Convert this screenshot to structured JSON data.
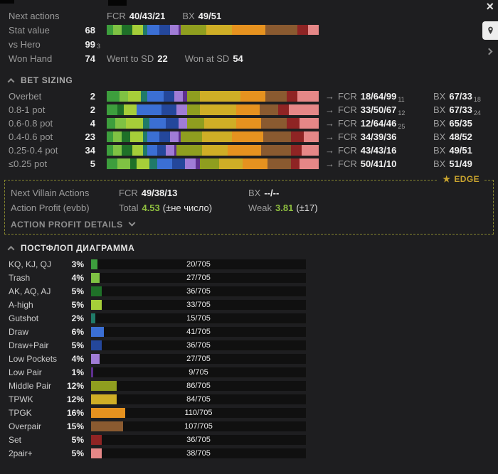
{
  "window": {
    "close_glyph": "×"
  },
  "colors": {
    "background": "#1e1e20",
    "label_gray": "#9b9b9b",
    "value_white": "#efefef",
    "profit_green": "#8fbf3f",
    "edge_gold": "#c9a42e",
    "edge_border": "#85852e",
    "track_bg": "#101010"
  },
  "palette": [
    "#3d9e3d",
    "#7fc243",
    "#1f7028",
    "#a6ce39",
    "#207a68",
    "#3b6fd4",
    "#24479b",
    "#a07cd6",
    "#5e2f8f",
    "#8f9e1f",
    "#cfae26",
    "#e6921f",
    "#8a5a30",
    "#8f2424",
    "#e58787"
  ],
  "header": {
    "next_actions": {
      "label": "Next actions",
      "fcr_label": "FCR",
      "fcr": "40/43/21",
      "bx_label": "BX",
      "bx": "49/51"
    },
    "stat_value": {
      "label": "Stat value",
      "value": "68"
    },
    "vs_hero": {
      "label": "vs Hero",
      "value": "99",
      "sub": "3"
    },
    "won_hand": {
      "label": "Won Hand",
      "value": "74",
      "sd_label": "Went to SD",
      "sd": "22",
      "wsd_label": "Won at SD",
      "wsd": "54"
    },
    "range_bar": [
      [
        0,
        3
      ],
      [
        1,
        4
      ],
      [
        2,
        5
      ],
      [
        3,
        5
      ],
      [
        4,
        2
      ],
      [
        5,
        6
      ],
      [
        6,
        5
      ],
      [
        7,
        4
      ],
      [
        8,
        1
      ],
      [
        9,
        12
      ],
      [
        10,
        12
      ],
      [
        11,
        16
      ],
      [
        12,
        15
      ],
      [
        13,
        5
      ],
      [
        14,
        5
      ]
    ]
  },
  "bet_sizing": {
    "title": "BET SIZING",
    "arrow": "→",
    "fcr_label": "FCR",
    "bx_label": "BX",
    "rows": [
      {
        "label": "Overbet",
        "value": "2",
        "fcr": "18/64/99",
        "fcr_sub": "11",
        "bx": "67/33",
        "bx_sub": "18",
        "segments": [
          [
            0,
            6
          ],
          [
            1,
            4
          ],
          [
            3,
            6
          ],
          [
            4,
            3
          ],
          [
            5,
            8
          ],
          [
            6,
            5
          ],
          [
            7,
            4
          ],
          [
            8,
            2
          ],
          [
            9,
            6
          ],
          [
            10,
            19
          ],
          [
            11,
            12
          ],
          [
            12,
            10
          ],
          [
            13,
            5
          ],
          [
            14,
            10
          ]
        ]
      },
      {
        "label": "0.8-1 pot",
        "value": "2",
        "fcr": "33/50/67",
        "fcr_sub": "12",
        "bx": "67/33",
        "bx_sub": "24",
        "segments": [
          [
            0,
            5
          ],
          [
            2,
            3
          ],
          [
            3,
            6
          ],
          [
            5,
            12
          ],
          [
            6,
            7
          ],
          [
            7,
            5
          ],
          [
            9,
            6
          ],
          [
            10,
            17
          ],
          [
            11,
            11
          ],
          [
            12,
            9
          ],
          [
            13,
            5
          ],
          [
            14,
            14
          ]
        ]
      },
      {
        "label": "0.6-0.8 pot",
        "value": "4",
        "fcr": "12/64/46",
        "fcr_sub": "25",
        "bx": "65/35",
        "segments": [
          [
            0,
            4
          ],
          [
            1,
            5
          ],
          [
            3,
            8
          ],
          [
            4,
            3
          ],
          [
            5,
            8
          ],
          [
            6,
            6
          ],
          [
            7,
            4
          ],
          [
            9,
            8
          ],
          [
            10,
            15
          ],
          [
            11,
            12
          ],
          [
            12,
            12
          ],
          [
            13,
            6
          ],
          [
            14,
            9
          ]
        ]
      },
      {
        "label": "0.4-0.6 pot",
        "value": "23",
        "fcr": "34/39/36",
        "bx": "48/52",
        "segments": [
          [
            0,
            3
          ],
          [
            1,
            4
          ],
          [
            2,
            4
          ],
          [
            3,
            6
          ],
          [
            4,
            2
          ],
          [
            5,
            6
          ],
          [
            6,
            5
          ],
          [
            7,
            4
          ],
          [
            8,
            1
          ],
          [
            9,
            10
          ],
          [
            10,
            14
          ],
          [
            11,
            15
          ],
          [
            12,
            13
          ],
          [
            13,
            6
          ],
          [
            14,
            7
          ]
        ]
      },
      {
        "label": "0.25-0.4 pot",
        "value": "34",
        "fcr": "43/43/16",
        "bx": "49/51",
        "segments": [
          [
            0,
            3
          ],
          [
            1,
            4
          ],
          [
            2,
            5
          ],
          [
            3,
            5
          ],
          [
            4,
            2
          ],
          [
            5,
            5
          ],
          [
            6,
            4
          ],
          [
            7,
            4
          ],
          [
            8,
            1
          ],
          [
            9,
            12
          ],
          [
            10,
            12
          ],
          [
            11,
            16
          ],
          [
            12,
            14
          ],
          [
            13,
            5
          ],
          [
            14,
            8
          ]
        ]
      },
      {
        "label": "≤0.25 pot",
        "value": "5",
        "fcr": "50/41/10",
        "bx": "51/49",
        "segments": [
          [
            0,
            5
          ],
          [
            1,
            6
          ],
          [
            2,
            3
          ],
          [
            3,
            6
          ],
          [
            4,
            4
          ],
          [
            5,
            7
          ],
          [
            6,
            6
          ],
          [
            7,
            5
          ],
          [
            8,
            2
          ],
          [
            9,
            9
          ],
          [
            10,
            11
          ],
          [
            11,
            12
          ],
          [
            12,
            11
          ],
          [
            13,
            4
          ],
          [
            14,
            9
          ]
        ]
      }
    ]
  },
  "edge_box": {
    "tag_star": "★",
    "tag": "EDGE",
    "villain": {
      "label": "Next Villain Actions",
      "fcr_label": "FCR",
      "fcr": "49/38/13",
      "bx_label": "BX",
      "bx": "--/--"
    },
    "profit": {
      "label": "Action Profit (evbb)",
      "total_label": "Total",
      "total": "4.53",
      "total_note": "(±не число)",
      "weak_label": "Weak",
      "weak": "3.81",
      "weak_note": "(±17)"
    },
    "details_label": "ACTION PROFIT DETAILS"
  },
  "diagram": {
    "title": "ПОСТФЛОП ДИАГРАММА",
    "rows": [
      {
        "label": "KQ, KJ, QJ",
        "pct": "3%",
        "count": "20/705",
        "color": 0
      },
      {
        "label": "Trash",
        "pct": "4%",
        "count": "27/705",
        "color": 1
      },
      {
        "label": "AK, AQ, AJ",
        "pct": "5%",
        "count": "36/705",
        "color": 2
      },
      {
        "label": "A-high",
        "pct": "5%",
        "count": "33/705",
        "color": 3
      },
      {
        "label": "Gutshot",
        "pct": "2%",
        "count": "15/705",
        "color": 4
      },
      {
        "label": "Draw",
        "pct": "6%",
        "count": "41/705",
        "color": 5
      },
      {
        "label": "Draw+Pair",
        "pct": "5%",
        "count": "36/705",
        "color": 6
      },
      {
        "label": "Low Pockets",
        "pct": "4%",
        "count": "27/705",
        "color": 7
      },
      {
        "label": "Low Pair",
        "pct": "1%",
        "count": "9/705",
        "color": 8
      },
      {
        "label": "Middle Pair",
        "pct": "12%",
        "count": "86/705",
        "color": 9
      },
      {
        "label": "TPWK",
        "pct": "12%",
        "count": "84/705",
        "color": 10
      },
      {
        "label": "TPGK",
        "pct": "16%",
        "count": "110/705",
        "color": 11
      },
      {
        "label": "Overpair",
        "pct": "15%",
        "count": "107/705",
        "color": 12
      },
      {
        "label": "Set",
        "pct": "5%",
        "count": "36/705",
        "color": 13
      },
      {
        "label": "2pair+",
        "pct": "5%",
        "count": "38/705",
        "color": 14
      }
    ]
  }
}
